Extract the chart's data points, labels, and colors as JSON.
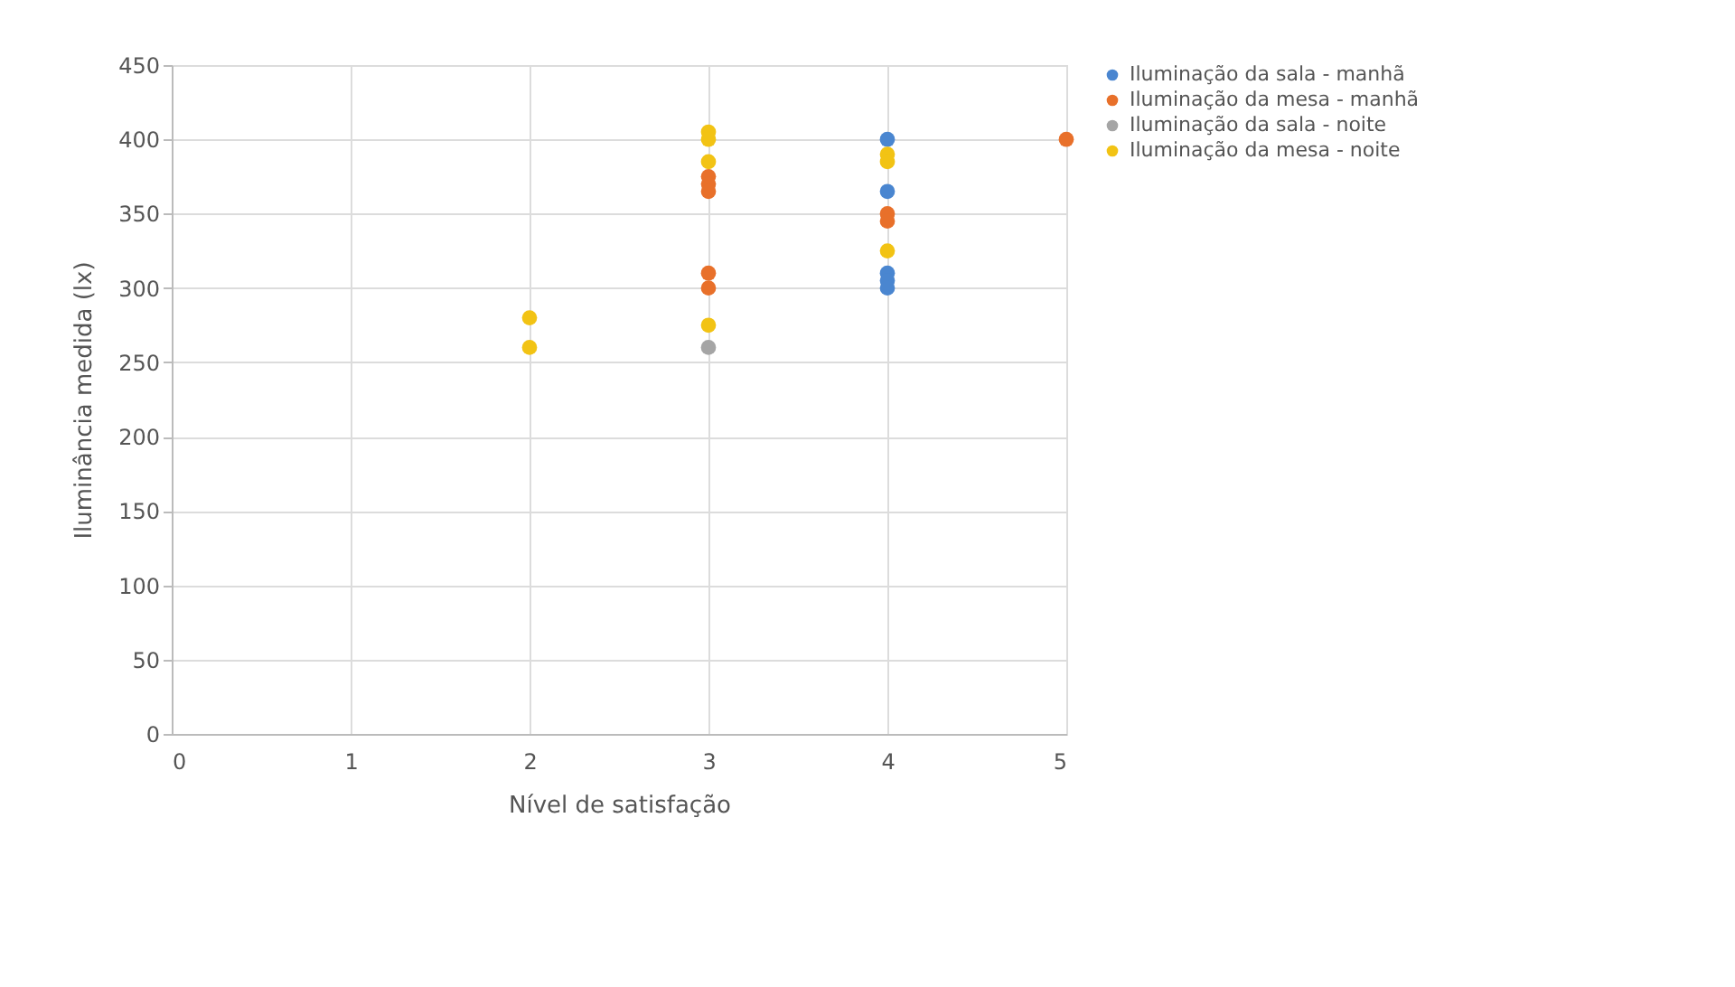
{
  "chart_data": {
    "type": "scatter",
    "xlabel": "Nível de satisfação",
    "ylabel": "Iluminância medida (lx)",
    "xlim": [
      0,
      5
    ],
    "xticks": [
      0,
      1,
      2,
      3,
      4,
      5
    ],
    "ylim": [
      0,
      450
    ],
    "yticks": [
      0,
      50,
      100,
      150,
      200,
      250,
      300,
      350,
      400,
      450
    ],
    "grid": true,
    "legend": "right",
    "marker": "circle",
    "series": [
      {
        "name": "Iluminação da sala - manhã",
        "color": "#4a86d0",
        "x": [
          4,
          4,
          4,
          4,
          4
        ],
        "values": [
          400,
          365,
          310,
          305,
          300
        ]
      },
      {
        "name": "Iluminação da mesa - manhã",
        "color": "#e8702a",
        "x": [
          3,
          3,
          3,
          3,
          3,
          4,
          4,
          5
        ],
        "values": [
          375,
          370,
          365,
          310,
          300,
          350,
          345,
          400
        ]
      },
      {
        "name": "Iluminação da sala - noite",
        "color": "#a5a5a5",
        "x": [
          3
        ],
        "values": [
          260
        ]
      },
      {
        "name": "Iluminação da mesa - noite",
        "color": "#f2c314",
        "x": [
          2,
          2,
          3,
          3,
          3,
          3,
          4,
          4,
          4
        ],
        "values": [
          280,
          260,
          405,
          400,
          385,
          275,
          390,
          385,
          325
        ]
      }
    ]
  }
}
